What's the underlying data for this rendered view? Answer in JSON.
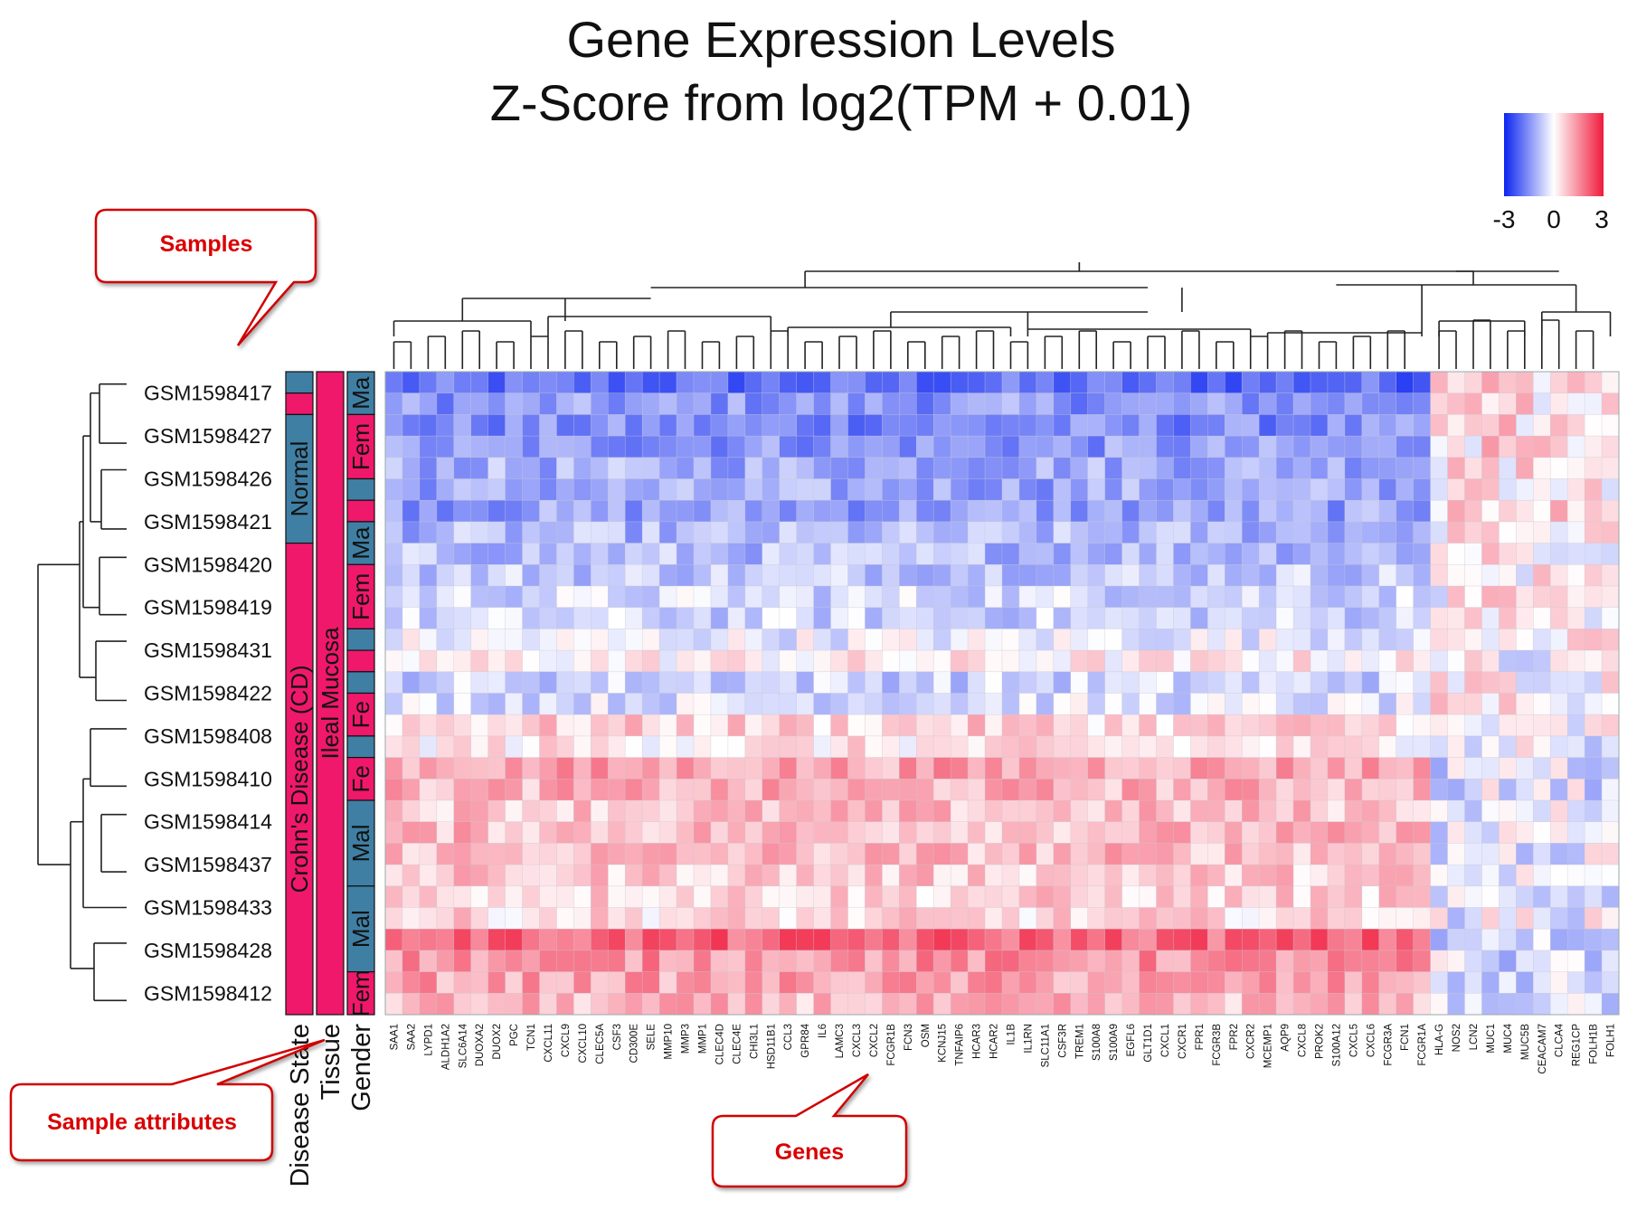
{
  "chart_data": {
    "type": "heatmap",
    "title": "Gene Expression Levels",
    "subtitle": "Z-Score from log2(TPM + 0.01)",
    "color_scale": {
      "min": -3,
      "mid": 0,
      "max": 3,
      "tick_labels": [
        "-3",
        "0",
        "3"
      ],
      "low_color": "#0b24f0",
      "mid_color": "#ffffff",
      "high_color": "#f01a3c"
    },
    "samples": [
      "GSM1598417",
      "GSM1598427",
      "GSM1598426",
      "GSM1598421",
      "GSM1598420",
      "GSM1598419",
      "GSM1598431",
      "GSM1598422",
      "GSM1598408",
      "GSM1598410",
      "GSM1598414",
      "GSM1598437",
      "GSM1598433",
      "GSM1598428",
      "GSM1598412"
    ],
    "genes": [
      "SAA1",
      "SAA2",
      "LYPD1",
      "ALDH1A2",
      "SLC6A14",
      "DUOXA2",
      "DUOX2",
      "PGC",
      "TCN1",
      "CXCL11",
      "CXCL9",
      "CXCL10",
      "CLEC5A",
      "CSF3",
      "CD300E",
      "SELE",
      "MMP10",
      "MMP3",
      "MMP1",
      "CLEC4D",
      "CLEC4E",
      "CHI3L1",
      "HSD11B1",
      "CCL3",
      "GPR84",
      "IL6",
      "LAMC3",
      "CXCL3",
      "CXCL2",
      "FCGR1B",
      "FCN3",
      "OSM",
      "KCNJ15",
      "TNFAIP6",
      "HCAR3",
      "HCAR2",
      "IL1B",
      "IL1RN",
      "SLC11A1",
      "CSF3R",
      "TREM1",
      "S100A8",
      "S100A9",
      "EGFL6",
      "GLT1D1",
      "CXCL1",
      "CXCR1",
      "FPR1",
      "FCGR3B",
      "FPR2",
      "CXCR2",
      "MCEMP1",
      "AQP9",
      "CXCL8",
      "PROK2",
      "S100A12",
      "CXCL5",
      "CXCL6",
      "FCGR3A",
      "FCN1",
      "FCGR1A",
      "HLA-G",
      "NOS2",
      "LCN2",
      "MUC1",
      "MUC4",
      "MUC5B",
      "CEACAM7",
      "CLCA4",
      "REG1CP",
      "FOLH1B",
      "FOLH1"
    ],
    "row_groups": [
      {
        "sample": "GSM1598417",
        "rows": [
          -2.0,
          -1.4
        ],
        "profile": "low"
      },
      {
        "sample": "GSM1598427",
        "rows": [
          -1.6,
          -1.4
        ],
        "profile": "low"
      },
      {
        "sample": "GSM1598426",
        "rows": [
          -1.1,
          -1.2
        ],
        "profile": "low"
      },
      {
        "sample": "GSM1598421",
        "rows": [
          -1.3,
          -1.0
        ],
        "profile": "low"
      },
      {
        "sample": "GSM1598420",
        "rows": [
          -0.9,
          -0.7
        ],
        "profile": "low"
      },
      {
        "sample": "GSM1598419",
        "rows": [
          -0.5,
          -0.6
        ],
        "profile": "low"
      },
      {
        "sample": "GSM1598431",
        "rows": [
          -0.2,
          0.2
        ],
        "profile": "mixed"
      },
      {
        "sample": "GSM1598422",
        "rows": [
          -0.6,
          -0.4
        ],
        "profile": "mixed"
      },
      {
        "sample": "GSM1598408",
        "rows": [
          0.6,
          0.3
        ],
        "profile": "high"
      },
      {
        "sample": "GSM1598410",
        "rows": [
          1.2,
          1.0
        ],
        "profile": "high"
      },
      {
        "sample": "GSM1598414",
        "rows": [
          0.8,
          0.9
        ],
        "profile": "high"
      },
      {
        "sample": "GSM1598437",
        "rows": [
          0.9,
          0.7
        ],
        "profile": "high"
      },
      {
        "sample": "GSM1598433",
        "rows": [
          0.6,
          0.5
        ],
        "profile": "high"
      },
      {
        "sample": "GSM1598428",
        "rows": [
          2.0,
          1.4
        ],
        "profile": "high"
      },
      {
        "sample": "GSM1598412",
        "rows": [
          1.2,
          0.9
        ],
        "profile": "high"
      }
    ],
    "special_columns_note_values": {
      "right_block_start_gene": "HLA-G"
    },
    "attribute_headers": [
      "Disease State",
      "Tissue",
      "Gender"
    ],
    "disease_state_bands": [
      {
        "label": "",
        "rows": [
          0,
          1
        ],
        "color": "#3f7fa4"
      },
      {
        "label": "",
        "rows": [
          1,
          2
        ],
        "color": "#f0186b"
      },
      {
        "label": "Normal",
        "rows": [
          2,
          8
        ],
        "color": "#3f7fa4"
      },
      {
        "label": "Crohn's Disease (CD)",
        "rows": [
          8,
          30
        ],
        "color": "#f0186b"
      }
    ],
    "tissue_bands": [
      {
        "label": "Ileal Mucosa",
        "rows": [
          0,
          30
        ],
        "color": "#f0186b"
      }
    ],
    "gender_bands": [
      {
        "label": "Ma",
        "rows": [
          0,
          2
        ],
        "color": "#3f7fa4"
      },
      {
        "label": "Fem",
        "rows": [
          2,
          5
        ],
        "color": "#f0186b"
      },
      {
        "label": "",
        "rows": [
          5,
          6
        ],
        "color": "#3f7fa4"
      },
      {
        "label": "",
        "rows": [
          6,
          7
        ],
        "color": "#f0186b"
      },
      {
        "label": "Ma",
        "rows": [
          7,
          9
        ],
        "color": "#3f7fa4"
      },
      {
        "label": "Fem",
        "rows": [
          9,
          12
        ],
        "color": "#f0186b"
      },
      {
        "label": "",
        "rows": [
          12,
          13
        ],
        "color": "#3f7fa4"
      },
      {
        "label": "",
        "rows": [
          13,
          14
        ],
        "color": "#f0186b"
      },
      {
        "label": "",
        "rows": [
          14,
          15
        ],
        "color": "#3f7fa4"
      },
      {
        "label": "Fe",
        "rows": [
          15,
          17
        ],
        "color": "#f0186b"
      },
      {
        "label": "",
        "rows": [
          17,
          18
        ],
        "color": "#3f7fa4"
      },
      {
        "label": "Fe",
        "rows": [
          18,
          20
        ],
        "color": "#f0186b"
      },
      {
        "label": "Mal",
        "rows": [
          20,
          24
        ],
        "color": "#3f7fa4"
      },
      {
        "label": "Mal",
        "rows": [
          24,
          28
        ],
        "color": "#3f7fa4"
      },
      {
        "label": "Fem",
        "rows": [
          28,
          30
        ],
        "color": "#f0186b"
      }
    ]
  },
  "callouts": {
    "samples": "Samples",
    "sample_attributes": "Sample attributes",
    "genes": "Genes"
  }
}
